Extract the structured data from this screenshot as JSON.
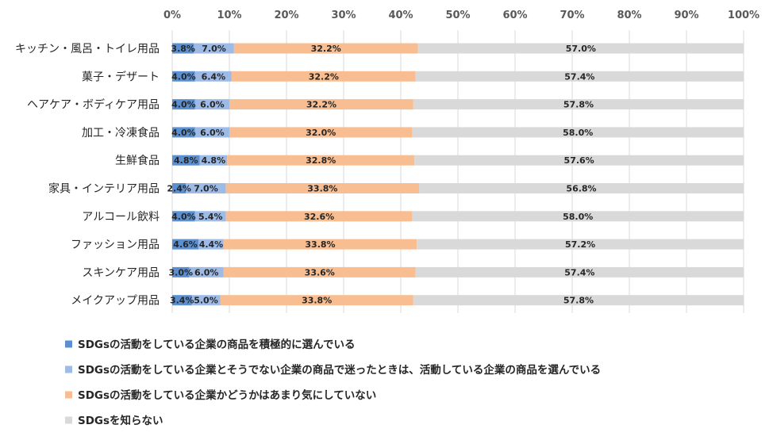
{
  "chart_data": {
    "type": "bar",
    "orientation": "horizontal",
    "stacked": true,
    "xlim": [
      0,
      100
    ],
    "x_ticks": [
      "0%",
      "10%",
      "20%",
      "30%",
      "40%",
      "50%",
      "60%",
      "70%",
      "80%",
      "90%",
      "100%"
    ],
    "categories": [
      "キッチン・風呂・トイレ用品",
      "菓子・デザート",
      "ヘアケア・ボディケア用品",
      "加工・冷凍食品",
      "生鮮食品",
      "家具・インテリア用品",
      "アルコール飲料",
      "ファッション用品",
      "スキンケア用品",
      "メイクアップ用品"
    ],
    "series": [
      {
        "name": "SDGsの活動をしている企業の商品を積極的に選んでいる",
        "color": "#5b8fd0",
        "values": [
          3.8,
          4.0,
          4.0,
          4.0,
          4.8,
          2.4,
          4.0,
          4.6,
          3.0,
          3.4
        ],
        "labels": [
          "3.8%",
          "4.0%",
          "4.0%",
          "4.0%",
          "4.8%",
          "2.4%",
          "4.0%",
          "4.6%",
          "3.0%",
          "3.4%"
        ]
      },
      {
        "name": "SDGsの活動をしている企業とそうでない企業の商品で迷ったときは、活動している企業の商品を選んでいる",
        "color": "#9dbbe6",
        "values": [
          7.0,
          6.4,
          6.0,
          6.0,
          4.8,
          7.0,
          5.4,
          4.4,
          6.0,
          5.0
        ],
        "labels": [
          "7.0%",
          "6.4%",
          "6.0%",
          "6.0%",
          "4.8%",
          "7.0%",
          "5.4%",
          "4.4%",
          "6.0%",
          "5.0%"
        ]
      },
      {
        "name": "SDGsの活動をしている企業かどうかはあまり気にしていない",
        "color": "#f8be91",
        "values": [
          32.2,
          32.2,
          32.2,
          32.0,
          32.8,
          33.8,
          32.6,
          33.8,
          33.6,
          33.8
        ],
        "labels": [
          "32.2%",
          "32.2%",
          "32.2%",
          "32.0%",
          "32.8%",
          "33.8%",
          "32.6%",
          "33.8%",
          "33.6%",
          "33.8%"
        ]
      },
      {
        "name": "SDGsを知らない",
        "color": "#d9d9d9",
        "values": [
          57.0,
          57.4,
          57.8,
          58.0,
          57.6,
          56.8,
          58.0,
          57.2,
          57.4,
          57.8
        ],
        "labels": [
          "57.0%",
          "57.4%",
          "57.8%",
          "58.0%",
          "57.6%",
          "56.8%",
          "58.0%",
          "57.2%",
          "57.4%",
          "57.8%"
        ]
      }
    ],
    "grid": true,
    "legend_position": "bottom-left"
  }
}
